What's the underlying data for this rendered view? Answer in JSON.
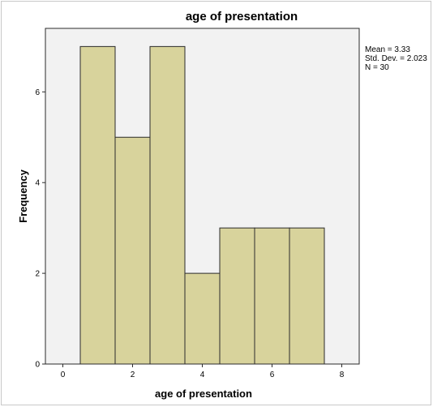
{
  "chart_data": {
    "type": "bar",
    "title": "age of presentation",
    "xlabel": "age of presentation",
    "ylabel": "Frequency",
    "xlim": [
      -0.5,
      8.5
    ],
    "ylim": [
      0,
      7.4
    ],
    "xticks": [
      0,
      2,
      4,
      6,
      8
    ],
    "yticks": [
      0,
      2,
      4,
      6
    ],
    "bins": [
      {
        "start": 0.5,
        "end": 1.5,
        "value": 7
      },
      {
        "start": 1.5,
        "end": 2.5,
        "value": 5
      },
      {
        "start": 2.5,
        "end": 3.5,
        "value": 7
      },
      {
        "start": 3.5,
        "end": 4.5,
        "value": 2
      },
      {
        "start": 4.5,
        "end": 5.5,
        "value": 3
      },
      {
        "start": 5.5,
        "end": 6.5,
        "value": 3
      },
      {
        "start": 6.5,
        "end": 7.5,
        "value": 3
      }
    ],
    "stats": [
      "Mean = 3.33",
      "Std. Dev. = 2.023",
      "N = 30"
    ],
    "grid": false,
    "colors": {
      "bar_fill": "#d8d39c",
      "bar_stroke": "#2b2b2b",
      "plot_bg": "#f2f2f2"
    }
  }
}
